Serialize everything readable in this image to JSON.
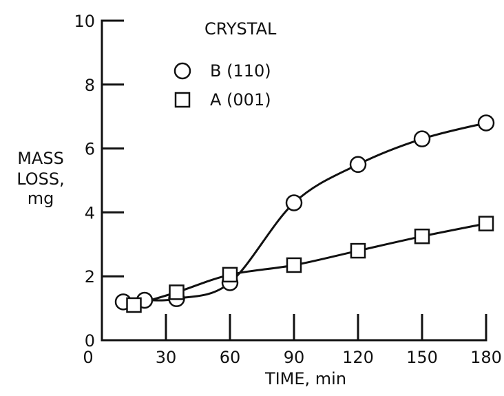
{
  "chart_data": {
    "type": "line",
    "title": "",
    "xlabel": "TIME, min",
    "ylabel": [
      "MASS",
      "LOSS,",
      "mg"
    ],
    "xlim": [
      0,
      180
    ],
    "ylim": [
      0,
      10
    ],
    "x_ticks": [
      0,
      30,
      60,
      90,
      120,
      150,
      180
    ],
    "y_ticks": [
      0,
      2,
      4,
      6,
      8,
      10
    ],
    "grid": false,
    "legend": {
      "title": "CRYSTAL",
      "position": "top-left"
    },
    "series": [
      {
        "name": "B (110)",
        "marker": "circle",
        "x": [
          10,
          20,
          35,
          60,
          90,
          120,
          150,
          180
        ],
        "y": [
          1.2,
          1.25,
          1.3,
          1.8,
          4.3,
          5.5,
          6.3,
          6.8
        ]
      },
      {
        "name": "A (001)",
        "marker": "square",
        "x": [
          15,
          35,
          60,
          90,
          120,
          150,
          180
        ],
        "y": [
          1.1,
          1.5,
          2.05,
          2.35,
          2.8,
          3.25,
          3.65
        ]
      }
    ]
  },
  "colors": {
    "ink": "#111111",
    "background": "#ffffff"
  }
}
